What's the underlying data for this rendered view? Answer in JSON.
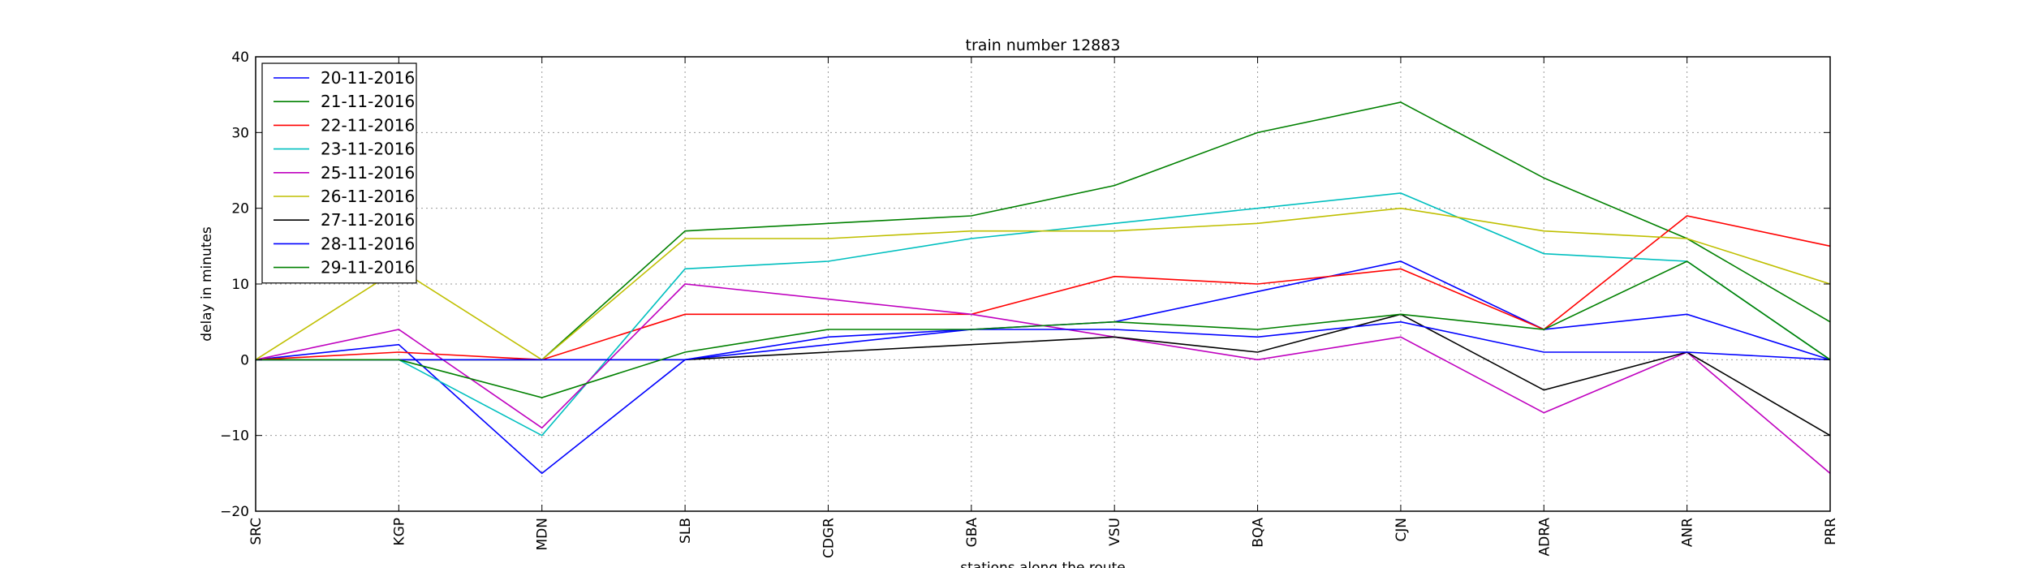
{
  "chart_data": {
    "type": "line",
    "title": "train number 12883",
    "xlabel": "stations along the route",
    "ylabel": "delay in minutes",
    "categories": [
      "SRC",
      "KGP",
      "MDN",
      "SLB",
      "CDGR",
      "GBA",
      "VSU",
      "BQA",
      "CJN",
      "ADRA",
      "ANR",
      "PRR"
    ],
    "ylim": [
      -20,
      40
    ],
    "yticks": [
      -20,
      -10,
      0,
      10,
      20,
      30,
      40
    ],
    "grid": true,
    "legend_position": "upper-left",
    "series": [
      {
        "name": "20-11-2016",
        "color": "#0000ff",
        "values": [
          0,
          2,
          -15,
          0,
          2,
          4,
          5,
          9,
          13,
          4,
          6,
          0
        ]
      },
      {
        "name": "21-11-2016",
        "color": "#008000",
        "values": [
          0,
          0,
          0,
          17,
          18,
          19,
          23,
          30,
          34,
          24,
          16,
          5
        ]
      },
      {
        "name": "22-11-2016",
        "color": "#ff0000",
        "values": [
          0,
          1,
          0,
          6,
          6,
          6,
          11,
          10,
          12,
          4,
          19,
          15
        ]
      },
      {
        "name": "23-11-2016",
        "color": "#00bfbf",
        "values": [
          0,
          0,
          -10,
          12,
          13,
          16,
          18,
          20,
          22,
          14,
          13,
          0
        ]
      },
      {
        "name": "25-11-2016",
        "color": "#bf00bf",
        "values": [
          0,
          4,
          -9,
          10,
          8,
          6,
          3,
          0,
          3,
          -7,
          1,
          -15
        ]
      },
      {
        "name": "26-11-2016",
        "color": "#bfbf00",
        "values": [
          0,
          12,
          0,
          16,
          16,
          17,
          17,
          18,
          20,
          17,
          16,
          10
        ]
      },
      {
        "name": "27-11-2016",
        "color": "#000000",
        "values": [
          0,
          0,
          0,
          0,
          1,
          2,
          3,
          1,
          6,
          -4,
          1,
          -10
        ]
      },
      {
        "name": "28-11-2016",
        "color": "#0000ff",
        "values": [
          0,
          0,
          0,
          0,
          3,
          4,
          4,
          3,
          5,
          1,
          1,
          0
        ]
      },
      {
        "name": "29-11-2016",
        "color": "#008000",
        "values": [
          0,
          0,
          -5,
          1,
          4,
          4,
          5,
          4,
          6,
          4,
          13,
          0
        ]
      }
    ]
  }
}
